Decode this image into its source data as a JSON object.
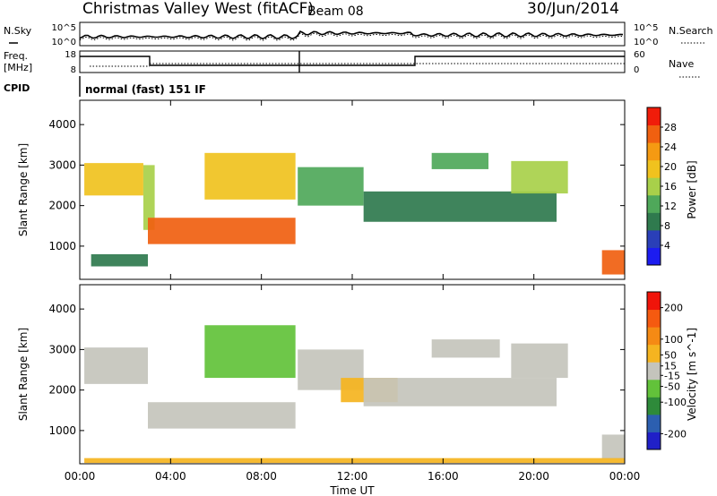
{
  "header": {
    "station": "Christmas Valley West (fitACF)",
    "beam": "Beam 08",
    "date": "30/Jun/2014"
  },
  "top_panels": {
    "nsky_label": "N.Sky",
    "nsearch_label": "N.Search",
    "freq_label_line1": "Freq.",
    "freq_label_line2": "[MHz]",
    "nave_label": "Nave",
    "cpid_label": "CPID",
    "cpid_text": "normal (fast) 151 IF",
    "noise_left_ticks": [
      "10^5",
      "10^0"
    ],
    "noise_right_ticks": [
      "10^5",
      "10^0"
    ],
    "freq_left_ticks": [
      "18",
      "8"
    ],
    "freq_right_ticks": [
      "60",
      "0"
    ]
  },
  "colors": {
    "power_scale": [
      "#1c1cf0",
      "#2a3fb8",
      "#2f7a4e",
      "#4fa85a",
      "#a8d04a",
      "#f0c21e",
      "#f59a12",
      "#f06010",
      "#f01c0a"
    ],
    "velocity_scale": [
      "#2020c8",
      "#2c5fb0",
      "#2e8a3a",
      "#62c23a",
      "#c4c4bc",
      "#f5b420",
      "#f58a14",
      "#f55a10",
      "#f0140a"
    ]
  },
  "chart_data": [
    {
      "type": "heatmap",
      "title": "",
      "xlabel": "",
      "ylabel": "Slant Range [km]",
      "x_ticks": [
        "00:00",
        "04:00",
        "08:00",
        "12:00",
        "16:00",
        "20:00",
        "00:00"
      ],
      "xlim_hours": [
        0,
        24
      ],
      "ylim": [
        180,
        4600
      ],
      "y_ticks": [
        1000,
        2000,
        3000,
        4000
      ],
      "colorbar": {
        "label": "Power [dB]",
        "ticks": [
          4,
          8,
          12,
          16,
          20,
          24,
          28
        ],
        "range": [
          0,
          32
        ]
      },
      "regions": [
        {
          "x": [
            0.2,
            2.8
          ],
          "y": [
            2250,
            3050
          ],
          "value": 20
        },
        {
          "x": [
            2.8,
            3.3
          ],
          "y": [
            1400,
            3000
          ],
          "value": 16
        },
        {
          "x": [
            3.0,
            9.5
          ],
          "y": [
            1050,
            1700
          ],
          "value": 26
        },
        {
          "x": [
            5.5,
            9.5
          ],
          "y": [
            2150,
            3300
          ],
          "value": 18
        },
        {
          "x": [
            9.6,
            12.5
          ],
          "y": [
            2000,
            2950
          ],
          "value": 12
        },
        {
          "x": [
            12.5,
            21.0
          ],
          "y": [
            1600,
            2350
          ],
          "value": 10
        },
        {
          "x": [
            15.5,
            18.0
          ],
          "y": [
            2900,
            3300
          ],
          "value": 12
        },
        {
          "x": [
            19.0,
            21.5
          ],
          "y": [
            2300,
            3100
          ],
          "value": 16
        },
        {
          "x": [
            23.0,
            24.0
          ],
          "y": [
            300,
            900
          ],
          "value": 28
        },
        {
          "x": [
            0.5,
            3.0
          ],
          "y": [
            500,
            800
          ],
          "value": 8
        }
      ]
    },
    {
      "type": "heatmap",
      "title": "",
      "xlabel": "Time UT",
      "ylabel": "Slant Range [km]",
      "x_ticks": [
        "00:00",
        "04:00",
        "08:00",
        "12:00",
        "16:00",
        "20:00",
        "00:00"
      ],
      "xlim_hours": [
        0,
        24
      ],
      "ylim": [
        180,
        4600
      ],
      "y_ticks": [
        1000,
        2000,
        3000,
        4000
      ],
      "colorbar": {
        "label": "Velocity [m s^-1]",
        "ticks": [
          200,
          100,
          50,
          15,
          -15,
          -50,
          -100,
          -200
        ],
        "range": [
          -250,
          250
        ]
      },
      "regions": [
        {
          "x": [
            0.2,
            3.0
          ],
          "y": [
            2150,
            3050
          ],
          "value": 0
        },
        {
          "x": [
            3.0,
            9.5
          ],
          "y": [
            1050,
            1700
          ],
          "value": 0
        },
        {
          "x": [
            5.5,
            9.5
          ],
          "y": [
            2300,
            3600
          ],
          "value": -60
        },
        {
          "x": [
            9.6,
            12.5
          ],
          "y": [
            2000,
            3000
          ],
          "value": 0
        },
        {
          "x": [
            11.5,
            14.0
          ],
          "y": [
            1700,
            2300
          ],
          "value": 60
        },
        {
          "x": [
            12.5,
            21.0
          ],
          "y": [
            1600,
            2300
          ],
          "value": 0
        },
        {
          "x": [
            15.5,
            18.5
          ],
          "y": [
            2800,
            3250
          ],
          "value": 0
        },
        {
          "x": [
            19.0,
            21.5
          ],
          "y": [
            2300,
            3150
          ],
          "value": 0
        },
        {
          "x": [
            23.0,
            24.0
          ],
          "y": [
            300,
            900
          ],
          "value": 0
        },
        {
          "x": [
            0.2,
            24.0
          ],
          "y": [
            200,
            320
          ],
          "value": 60
        }
      ]
    }
  ]
}
